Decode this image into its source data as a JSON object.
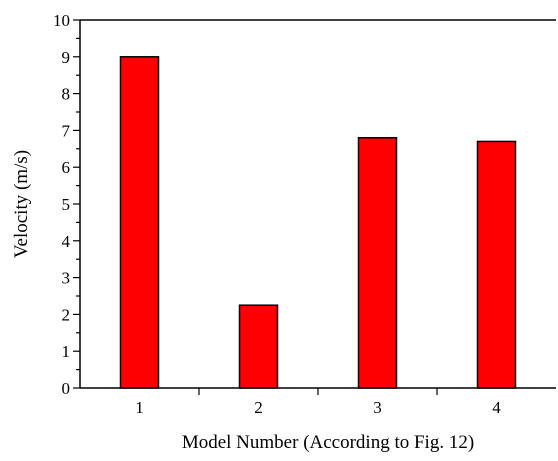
{
  "chart_data": {
    "type": "bar",
    "categories": [
      "1",
      "2",
      "3",
      "4"
    ],
    "values": [
      9.0,
      2.25,
      6.8,
      6.7
    ],
    "title": "",
    "xlabel": "Model Number (According to Fig. 12)",
    "ylabel": "Velocity (m/s)",
    "ylim": [
      0,
      10
    ],
    "yticks": [
      "0",
      "1",
      "2",
      "3",
      "4",
      "5",
      "6",
      "7",
      "8",
      "9",
      "10"
    ],
    "bar_color": "#ff0000",
    "grid": false,
    "legend": "none"
  }
}
